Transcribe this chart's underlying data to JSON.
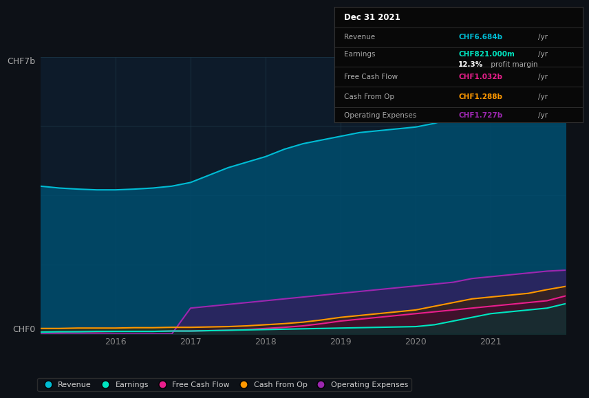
{
  "bg_color": "#0d1117",
  "plot_bg_color": "#0d1b2a",
  "years": [
    2015.0,
    2015.25,
    2015.5,
    2015.75,
    2016.0,
    2016.25,
    2016.5,
    2016.75,
    2017.0,
    2017.25,
    2017.5,
    2017.75,
    2018.0,
    2018.25,
    2018.5,
    2018.75,
    2019.0,
    2019.25,
    2019.5,
    2019.75,
    2020.0,
    2020.25,
    2020.5,
    2020.75,
    2021.0,
    2021.25,
    2021.5,
    2021.75,
    2022.0
  ],
  "revenue": [
    4.0,
    3.95,
    3.92,
    3.9,
    3.9,
    3.92,
    3.95,
    4.0,
    4.1,
    4.3,
    4.5,
    4.65,
    4.8,
    5.0,
    5.15,
    5.25,
    5.35,
    5.45,
    5.5,
    5.55,
    5.6,
    5.7,
    5.85,
    6.0,
    6.1,
    6.3,
    6.5,
    6.6,
    6.684
  ],
  "earnings": [
    0.05,
    0.06,
    0.06,
    0.07,
    0.07,
    0.07,
    0.07,
    0.08,
    0.08,
    0.09,
    0.1,
    0.11,
    0.12,
    0.13,
    0.14,
    0.15,
    0.16,
    0.17,
    0.18,
    0.19,
    0.2,
    0.25,
    0.35,
    0.45,
    0.55,
    0.6,
    0.65,
    0.7,
    0.821
  ],
  "free_cash_flow": [
    0.05,
    0.05,
    0.06,
    0.06,
    0.07,
    0.07,
    0.07,
    0.08,
    0.08,
    0.09,
    0.1,
    0.12,
    0.15,
    0.18,
    0.22,
    0.28,
    0.35,
    0.4,
    0.45,
    0.5,
    0.55,
    0.6,
    0.65,
    0.7,
    0.75,
    0.8,
    0.85,
    0.9,
    1.032
  ],
  "cash_from_op": [
    0.15,
    0.15,
    0.16,
    0.16,
    0.16,
    0.17,
    0.17,
    0.18,
    0.18,
    0.19,
    0.2,
    0.22,
    0.25,
    0.28,
    0.32,
    0.38,
    0.45,
    0.5,
    0.55,
    0.6,
    0.65,
    0.75,
    0.85,
    0.95,
    1.0,
    1.05,
    1.1,
    1.2,
    1.288
  ],
  "operating_expenses": [
    0.0,
    0.0,
    0.0,
    0.0,
    0.0,
    0.0,
    0.0,
    0.0,
    0.7,
    0.75,
    0.8,
    0.85,
    0.9,
    0.95,
    1.0,
    1.05,
    1.1,
    1.15,
    1.2,
    1.25,
    1.3,
    1.35,
    1.4,
    1.5,
    1.55,
    1.6,
    1.65,
    1.7,
    1.727
  ],
  "revenue_color": "#00bcd4",
  "earnings_color": "#00e5c0",
  "fcf_color": "#e91e8c",
  "cashop_color": "#ff9800",
  "opex_color": "#9c27b0",
  "revenue_fill": "#004d6e",
  "panel_bg": "#0a0a0a",
  "panel_border": "#333333",
  "title_label": "CHF7b",
  "bottom_label": "CHF0",
  "xticks": [
    2016,
    2017,
    2018,
    2019,
    2020,
    2021
  ],
  "ylim_max": 7.5,
  "info_title": "Dec 31 2021",
  "info_revenue_label": "Revenue",
  "info_revenue_val": "CHF6.684b /yr",
  "info_earnings_label": "Earnings",
  "info_earnings_val": "CHF821.000m /yr",
  "info_margin": "12.3% profit margin",
  "info_fcf_label": "Free Cash Flow",
  "info_fcf_val": "CHF1.032b /yr",
  "info_cashop_label": "Cash From Op",
  "info_cashop_val": "CHF1.288b /yr",
  "info_opex_label": "Operating Expenses",
  "info_opex_val": "CHF1.727b /yr",
  "legend_items": [
    "Revenue",
    "Earnings",
    "Free Cash Flow",
    "Cash From Op",
    "Operating Expenses"
  ],
  "legend_colors": [
    "#00bcd4",
    "#00e5c0",
    "#e91e8c",
    "#ff9800",
    "#9c27b0"
  ]
}
